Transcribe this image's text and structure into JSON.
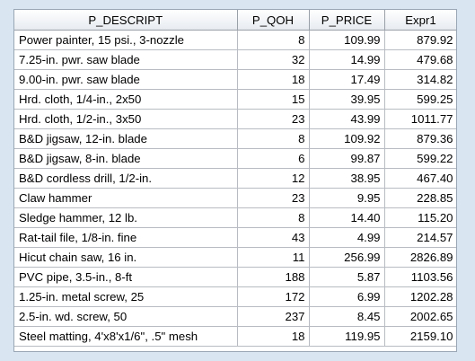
{
  "table": {
    "columns": [
      "P_DESCRIPT",
      "P_QOH",
      "P_PRICE",
      "Expr1"
    ],
    "rows": [
      {
        "desc": "Power painter, 15 psi., 3-nozzle",
        "qoh": "8",
        "price": "109.99",
        "expr": "879.92"
      },
      {
        "desc": "7.25-in. pwr. saw blade",
        "qoh": "32",
        "price": "14.99",
        "expr": "479.68"
      },
      {
        "desc": "9.00-in. pwr. saw blade",
        "qoh": "18",
        "price": "17.49",
        "expr": "314.82"
      },
      {
        "desc": "Hrd. cloth, 1/4-in., 2x50",
        "qoh": "15",
        "price": "39.95",
        "expr": "599.25"
      },
      {
        "desc": "Hrd. cloth, 1/2-in., 3x50",
        "qoh": "23",
        "price": "43.99",
        "expr": "1011.77"
      },
      {
        "desc": "B&D jigsaw, 12-in. blade",
        "qoh": "8",
        "price": "109.92",
        "expr": "879.36"
      },
      {
        "desc": "B&D jigsaw, 8-in. blade",
        "qoh": "6",
        "price": "99.87",
        "expr": "599.22"
      },
      {
        "desc": "B&D cordless drill, 1/2-in.",
        "qoh": "12",
        "price": "38.95",
        "expr": "467.40"
      },
      {
        "desc": "Claw hammer",
        "qoh": "23",
        "price": "9.95",
        "expr": "228.85"
      },
      {
        "desc": "Sledge hammer, 12 lb.",
        "qoh": "8",
        "price": "14.40",
        "expr": "115.20"
      },
      {
        "desc": "Rat-tail file, 1/8-in. fine",
        "qoh": "43",
        "price": "4.99",
        "expr": "214.57"
      },
      {
        "desc": "Hicut chain saw, 16 in.",
        "qoh": "11",
        "price": "256.99",
        "expr": "2826.89"
      },
      {
        "desc": "PVC pipe, 3.5-in., 8-ft",
        "qoh": "188",
        "price": "5.87",
        "expr": "1103.56"
      },
      {
        "desc": "1.25-in. metal screw, 25",
        "qoh": "172",
        "price": "6.99",
        "expr": "1202.28"
      },
      {
        "desc": "2.5-in. wd. screw, 50",
        "qoh": "237",
        "price": "8.45",
        "expr": "2002.65"
      },
      {
        "desc": "Steel matting, 4'x8'x1/6\", .5\" mesh",
        "qoh": "18",
        "price": "119.95",
        "expr": "2159.10"
      }
    ]
  },
  "colors": {
    "background": "#d9e6f2",
    "grid_line": "#b8bcc2",
    "header_border": "#9aa0a8"
  }
}
